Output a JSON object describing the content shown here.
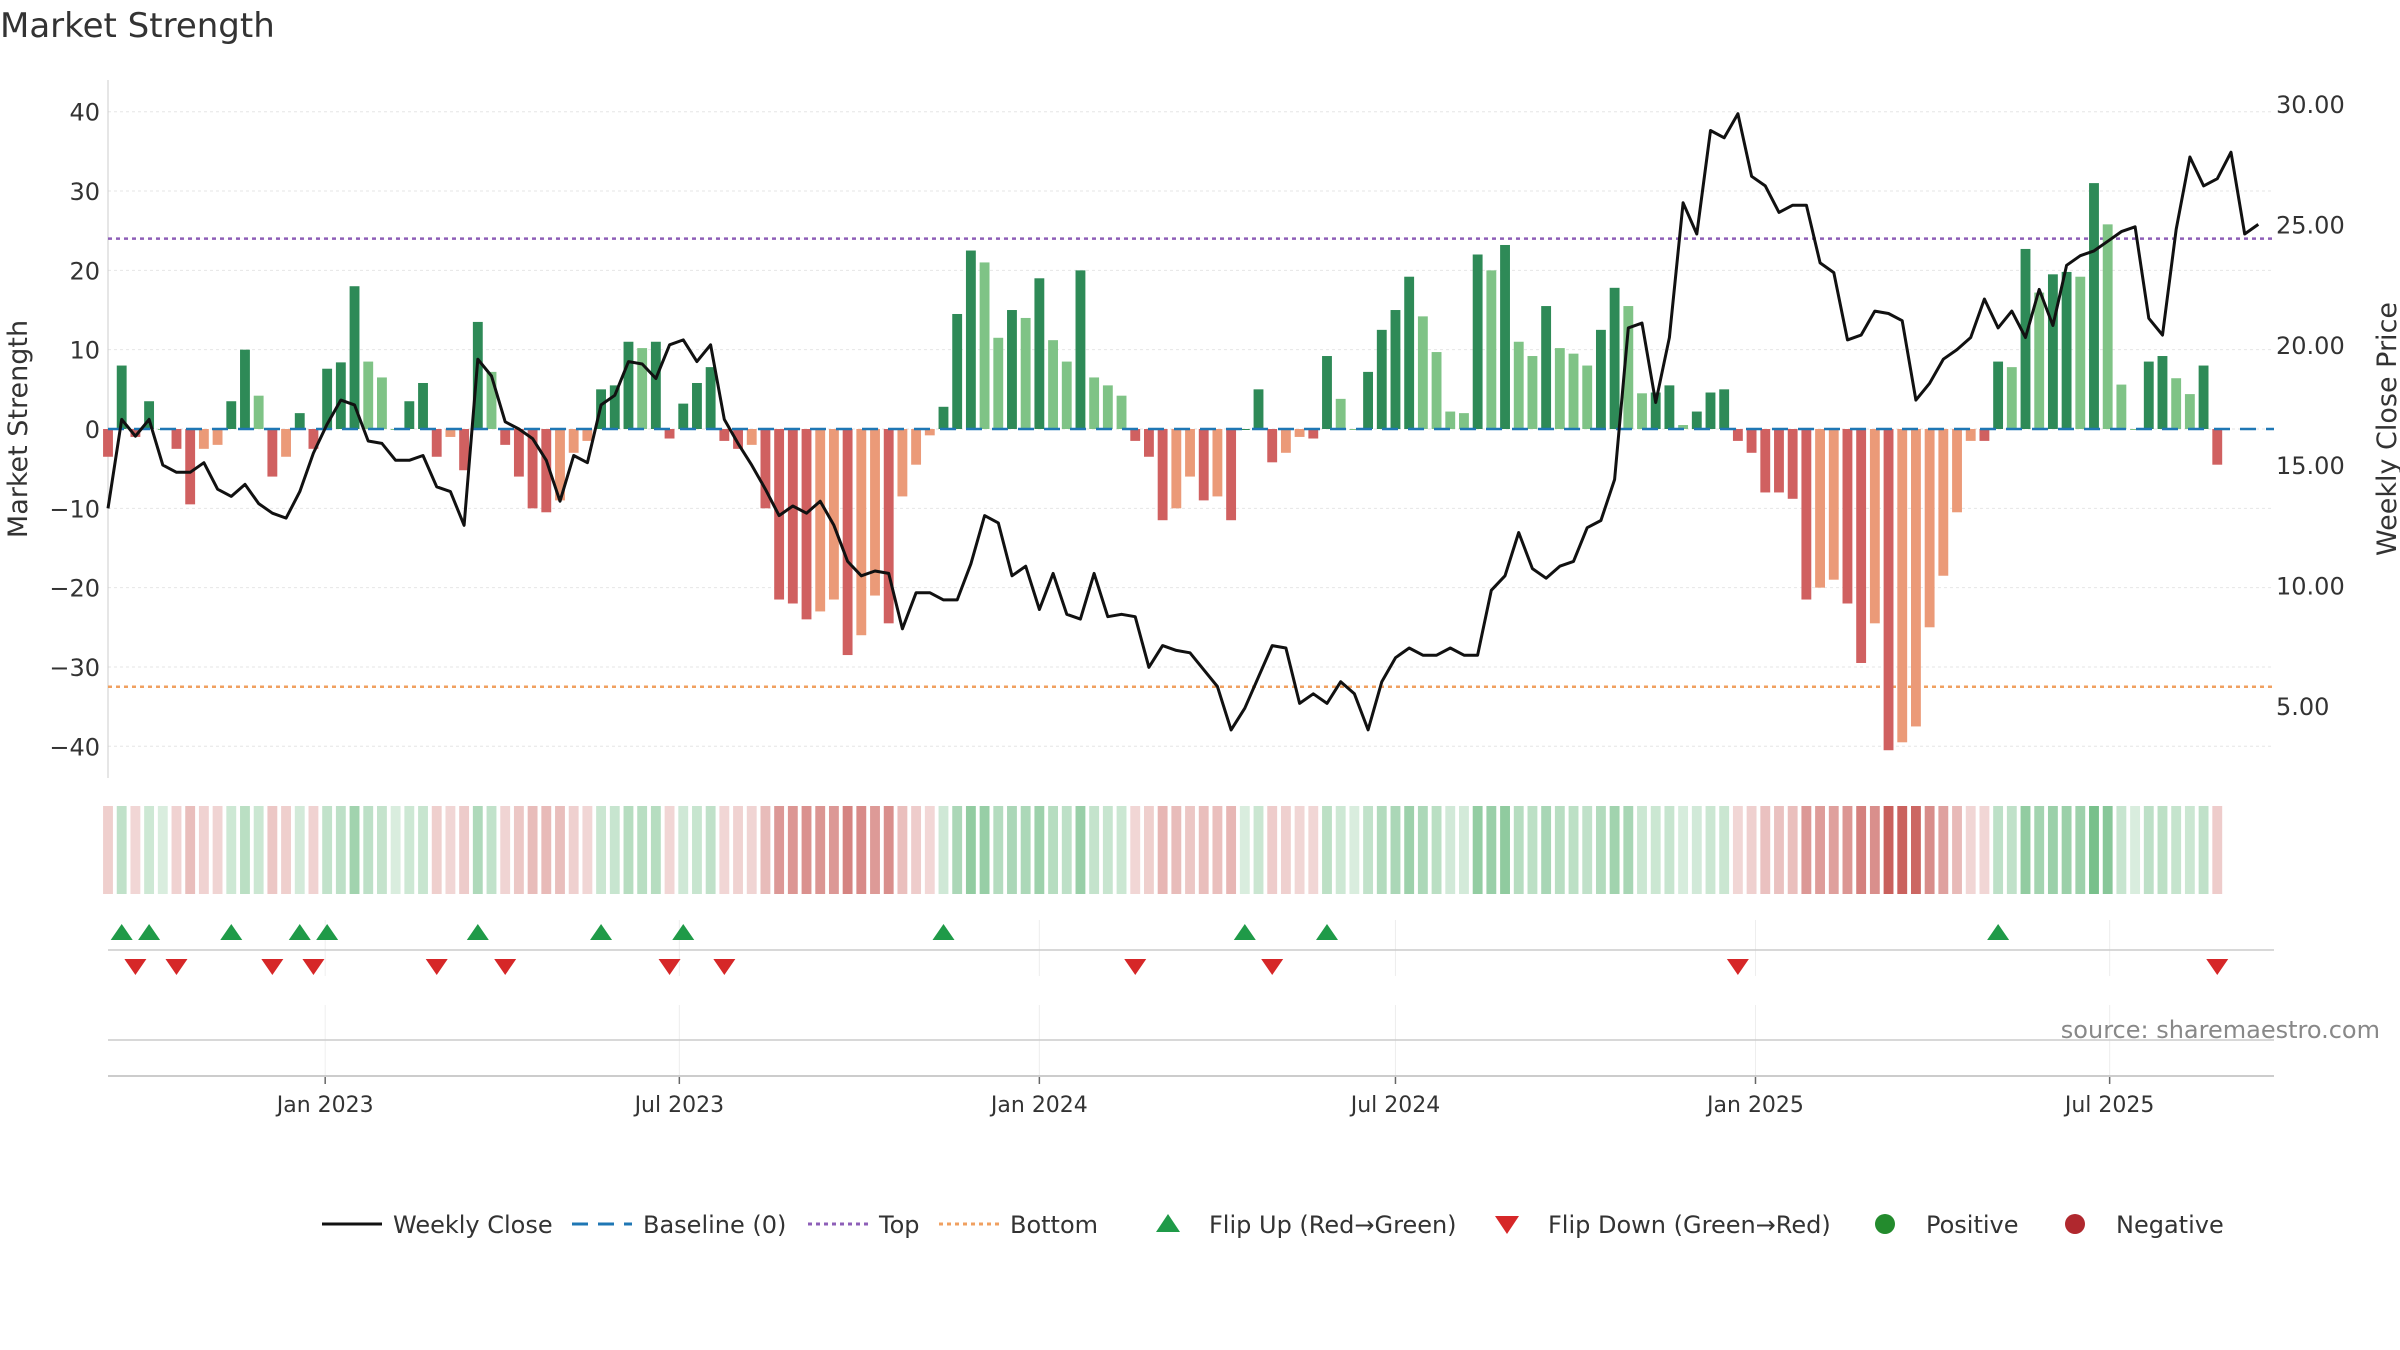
{
  "chart_data": {
    "type": "bar",
    "title": "Market Strength",
    "ylabel_left": "Market Strength",
    "ylabel_right": "Weekly Close Price",
    "ylim_left": [
      -44,
      44
    ],
    "ylim_right": [
      2.0,
      31.0
    ],
    "yticks_left": [
      40,
      30,
      20,
      10,
      0,
      -10,
      -20,
      -30,
      -40
    ],
    "yticks_left_labels": [
      "40",
      "30",
      "20",
      "10",
      "0",
      "−10",
      "−20",
      "−30",
      "−40"
    ],
    "yticks_right": [
      30,
      25,
      20,
      15,
      10,
      5
    ],
    "yticks_right_labels": [
      "30.00",
      "25.00",
      "20.00",
      "15.00",
      "10.00",
      "5.00"
    ],
    "x_range": [
      "2022-09-12",
      "2025-09-23"
    ],
    "x_ticks": [
      {
        "date": "2023-01-01",
        "label": "Jan 2023"
      },
      {
        "date": "2023-07-01",
        "label": "Jul 2023"
      },
      {
        "date": "2024-01-01",
        "label": "Jan 2024"
      },
      {
        "date": "2024-07-01",
        "label": "Jul 2024"
      },
      {
        "date": "2025-01-01",
        "label": "Jan 2025"
      },
      {
        "date": "2025-07-01",
        "label": "Jul 2025"
      }
    ],
    "top_line": 24,
    "bottom_line": -32.5,
    "baseline": 0,
    "strength_start": "2022-09-12",
    "strength_interval_days": 7,
    "strength_values": [
      -3.5,
      8,
      -1,
      3.5,
      0,
      -2.5,
      -9.5,
      -2.5,
      -2,
      3.5,
      10,
      4.2,
      -6,
      -3.5,
      2,
      -2.5,
      7.6,
      8.4,
      18,
      8.5,
      6.5,
      0,
      3.5,
      5.8,
      -3.5,
      -1,
      -5.2,
      13.5,
      7.2,
      -2,
      -6,
      -10,
      -10.5,
      -9,
      -3,
      -1.5,
      5,
      5.5,
      11,
      10.2,
      11,
      -1.2,
      3.2,
      5.8,
      7.8,
      -1.5,
      -2.5,
      -2,
      -10,
      -21.5,
      -22,
      -24,
      -23,
      -21.5,
      -28.5,
      -26,
      -21,
      -24.5,
      -8.5,
      -4.5,
      -0.8,
      2.8,
      14.5,
      22.5,
      21,
      11.5,
      15,
      14,
      19,
      11.2,
      8.5,
      20,
      6.5,
      5.5,
      4.2,
      -1.5,
      -3.5,
      -11.5,
      -10,
      -6,
      -9,
      -8.5,
      -11.5,
      0,
      5,
      -4.2,
      -3,
      -1,
      -1.2,
      9.2,
      3.8,
      0,
      7.2,
      12.5,
      15,
      19.2,
      14.2,
      9.7,
      2.2,
      2,
      22,
      20,
      23.2,
      11,
      9.2,
      15.5,
      10.2,
      9.5,
      8,
      12.5,
      17.8,
      15.5,
      4.5,
      4.6,
      5.5,
      0.5,
      2.2,
      4.6,
      5,
      -1.5,
      -3,
      -8,
      -8,
      -8.8,
      -21.5,
      -20,
      -19,
      -22,
      -29.5,
      -24.5,
      -40.5,
      -39.5,
      -37.5,
      -25,
      -18.5,
      -10.5,
      -1.5,
      -1.5,
      8.5,
      7.8,
      22.7,
      17.2,
      19.5,
      19.8,
      19.2,
      31,
      25.8,
      5.6,
      0,
      8.5,
      9.2,
      6.4,
      4.4,
      8,
      -4.5
    ],
    "close_start": "2022-09-12",
    "close_interval_days": 7,
    "close_values": [
      13.2,
      16.9,
      16.2,
      16.9,
      15.0,
      14.7,
      14.7,
      15.1,
      14.0,
      13.7,
      14.2,
      13.4,
      13.0,
      12.8,
      13.9,
      15.5,
      16.7,
      17.7,
      17.5,
      16.0,
      15.9,
      15.2,
      15.2,
      15.4,
      14.1,
      13.9,
      12.5,
      19.4,
      18.7,
      16.8,
      16.5,
      16.1,
      15.2,
      13.5,
      15.4,
      15.1,
      17.5,
      17.9,
      19.3,
      19.2,
      18.6,
      20.0,
      20.2,
      19.3,
      20.0,
      16.9,
      15.9,
      15.0,
      14.0,
      12.9,
      13.3,
      13.0,
      13.5,
      12.5,
      11.0,
      10.4,
      10.6,
      10.5,
      8.2,
      9.7,
      9.7,
      9.4,
      9.4,
      10.9,
      12.9,
      12.6,
      10.4,
      10.8,
      9.0,
      10.5,
      8.8,
      8.6,
      10.5,
      8.7,
      8.8,
      8.7,
      6.6,
      7.5,
      7.3,
      7.2,
      6.5,
      5.8,
      4.0,
      4.9,
      6.2,
      7.5,
      7.4,
      5.1,
      5.5,
      5.1,
      6.0,
      5.5,
      4.0,
      6.0,
      7.0,
      7.4,
      7.1,
      7.1,
      7.4,
      7.1,
      7.1,
      9.8,
      10.4,
      12.2,
      10.7,
      10.3,
      10.8,
      11.0,
      12.4,
      12.7,
      14.4,
      20.7,
      20.9,
      17.6,
      20.3,
      25.9,
      24.6,
      28.9,
      28.6,
      29.6,
      27.0,
      26.6,
      25.5,
      25.8,
      25.8,
      23.4,
      23.0,
      20.2,
      20.4,
      21.4,
      21.3,
      21.0,
      17.7,
      18.4,
      19.4,
      19.8,
      20.3,
      21.9,
      20.7,
      21.4,
      20.3,
      22.3,
      20.8,
      23.3,
      23.7,
      23.9,
      24.3,
      24.7,
      24.9,
      21.1,
      20.4,
      24.8,
      27.8,
      26.6,
      26.9,
      28.0,
      24.6,
      25.0
    ]
  },
  "legend": [
    {
      "label": "Weekly Close",
      "symbol": "solid-line",
      "color": "#111111"
    },
    {
      "label": "Baseline (0)",
      "symbol": "dashed-line",
      "color": "#1f77b4"
    },
    {
      "label": "Top",
      "symbol": "dotted-line",
      "color": "#8e5fb8"
    },
    {
      "label": "Bottom",
      "symbol": "dotted-line",
      "color": "#f0a060"
    },
    {
      "label": "Flip Up (Red→Green)",
      "symbol": "triangle-up",
      "color": "#1f9a48"
    },
    {
      "label": "Flip Down (Green→Red)",
      "symbol": "triangle-down",
      "color": "#d62728"
    },
    {
      "label": "Positive",
      "symbol": "circle",
      "color": "#238b2d"
    },
    {
      "label": "Negative",
      "symbol": "circle",
      "color": "#b0282e"
    }
  ],
  "source": "source: sharemaestro.com",
  "colors": {
    "pos_strong": "#2e8a57",
    "pos_weak": "#7fc386",
    "neg_strong": "#d06060",
    "neg_weak": "#eb9a78",
    "close_line": "#111111",
    "baseline": "#1f77b4",
    "top_line": "#8e5fb8",
    "bottom_line": "#f0a060",
    "flip_up": "#1f9a48",
    "flip_down": "#d62728"
  }
}
